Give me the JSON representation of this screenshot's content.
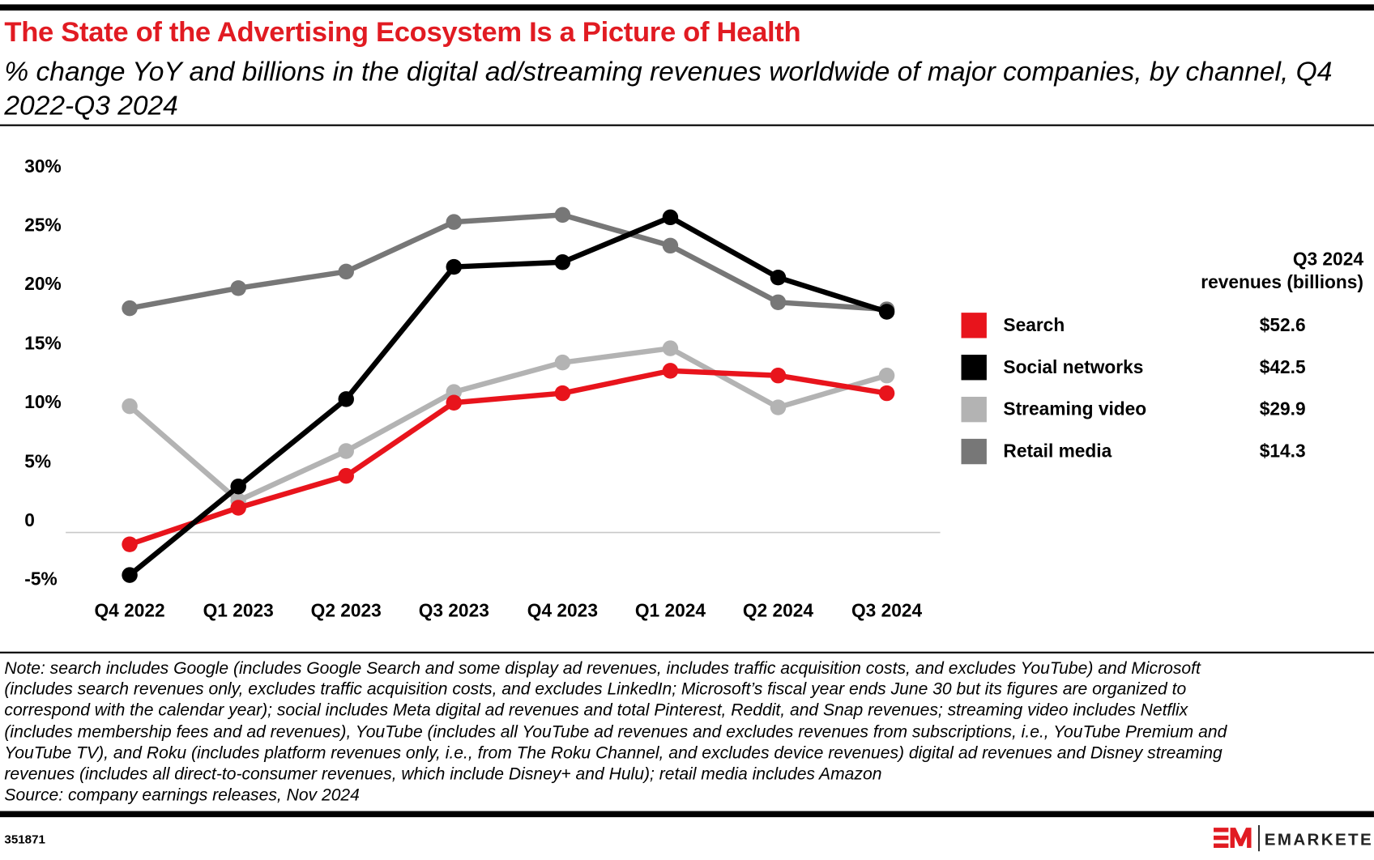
{
  "title": "The State of the Advertising Ecosystem Is a Picture of Health",
  "subtitle": "% change YoY and billions in the digital ad/streaming revenues worldwide of major companies, by channel, Q4 2022-Q3 2024",
  "chart_data": {
    "type": "line",
    "title": "The State of the Advertising Ecosystem Is a Picture of Health",
    "categories": [
      "Q4 2022",
      "Q1 2023",
      "Q2 2023",
      "Q3 2023",
      "Q4 2023",
      "Q1 2024",
      "Q2 2024",
      "Q3 2024"
    ],
    "y_ticks": [
      {
        "value": 30,
        "label": "30%"
      },
      {
        "value": 25,
        "label": "25%"
      },
      {
        "value": 20,
        "label": "20%"
      },
      {
        "value": 15,
        "label": "15%"
      },
      {
        "value": 10,
        "label": "10%"
      },
      {
        "value": 5,
        "label": "5%"
      },
      {
        "value": 0,
        "label": "0"
      },
      {
        "value": -5,
        "label": "-5%"
      }
    ],
    "ylim": [
      -5,
      30
    ],
    "grid": "zero line only",
    "legend_placement": "right",
    "series": [
      {
        "name": "Retail media",
        "color": "#777777",
        "revenue_label": "$14.3",
        "values": [
          19.0,
          20.7,
          22.1,
          26.3,
          26.9,
          24.3,
          19.5,
          18.9
        ]
      },
      {
        "name": "Streaming video",
        "color": "#b3b3b3",
        "revenue_label": "$29.9",
        "values": [
          10.7,
          2.7,
          6.9,
          11.9,
          14.4,
          15.6,
          10.6,
          13.3
        ]
      },
      {
        "name": "Search",
        "color": "#e8141c",
        "revenue_label": "$52.6",
        "values": [
          -1.0,
          2.1,
          4.8,
          11.0,
          11.8,
          13.7,
          13.3,
          11.8
        ]
      },
      {
        "name": "Social networks",
        "color": "#000000",
        "revenue_label": "$42.5",
        "values": [
          -3.6,
          3.9,
          11.3,
          22.5,
          22.9,
          26.7,
          21.6,
          18.7
        ]
      }
    ],
    "legend": {
      "header_line1": "Q3 2024",
      "header_line2": "revenues (billions)",
      "order": [
        2,
        3,
        1,
        0
      ]
    }
  },
  "notes": [
    "Note: search includes Google (includes Google Search and some display ad revenues, includes traffic acquisition costs, and excludes YouTube) and Microsoft",
    "(includes search revenues only, excludes traffic acquisition costs, and excludes LinkedIn; Microsoft’s fiscal year ends June 30 but its figures are organized to",
    "correspond with the calendar year); social includes Meta digital ad revenues and total Pinterest, Reddit, and Snap revenues; streaming video includes Netflix",
    "(includes membership fees and ad revenues), YouTube (includes all YouTube ad revenues and excludes revenues from subscriptions, i.e., YouTube Premium and",
    "YouTube TV), and Roku (includes platform revenues only, i.e., from The Roku Channel, and excludes device revenues) digital ad revenues and Disney streaming",
    "revenues (includes all direct-to-consumer revenues, which include Disney+ and Hulu); retail media includes Amazon",
    "Source: company earnings releases, Nov 2024"
  ],
  "chart_id": "351871",
  "brand": {
    "logo_text": "EMARKETER",
    "logo_mark": "EM",
    "accent": "#e11b22"
  }
}
